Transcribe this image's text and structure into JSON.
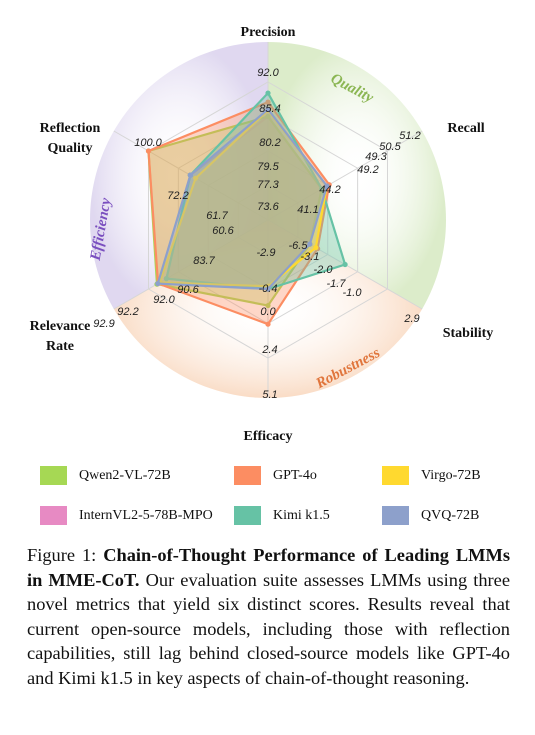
{
  "chart_data": {
    "type": "radar",
    "axes": [
      "Precision",
      "Recall",
      "Stability",
      "Efficacy",
      "Relevance Rate",
      "Reflection Quality"
    ],
    "range": [
      0,
      100
    ],
    "group_labels": [
      "Quality",
      "Robustness",
      "Efficiency"
    ],
    "series": [
      {
        "name": "Qwen2-VL-72B",
        "color": "#a6d854",
        "values": [
          null,
          null,
          null,
          2.4,
          92.9,
          100.0
        ]
      },
      {
        "name": "GPT-4o",
        "color": "#fc8d62",
        "values": [
          85.4,
          51.2,
          -1.7,
          5.1,
          92.0,
          100.0
        ]
      },
      {
        "name": "Virgo-72B",
        "color": "#ffd92f",
        "values": [
          79.5,
          49.2,
          -2.0,
          -0.4,
          90.6,
          60.6
        ]
      },
      {
        "name": "InternVL2-5-78B-MPO",
        "color": "#e78ac3",
        "values": [
          null,
          null,
          null,
          null,
          null,
          null
        ]
      },
      {
        "name": "Kimi k1.5",
        "color": "#66c2a5",
        "values": [
          92.0,
          null,
          2.9,
          null,
          null,
          null
        ]
      },
      {
        "name": "QVQ-72B",
        "color": "#8da0cb",
        "values": [
          80.2,
          49.3,
          null,
          null,
          92.2,
          null
        ]
      }
    ],
    "value_labels": [
      {
        "axis": 0,
        "text": "92.0"
      },
      {
        "axis": 0,
        "text": "85.4"
      },
      {
        "axis": 0,
        "text": "80.2"
      },
      {
        "axis": 0,
        "text": "79.5"
      },
      {
        "axis": 0,
        "text": "77.3"
      },
      {
        "axis": 0,
        "text": "73.6"
      },
      {
        "axis": 1,
        "text": "51.2"
      },
      {
        "axis": 1,
        "text": "50.5"
      },
      {
        "axis": 1,
        "text": "49.3"
      },
      {
        "axis": 1,
        "text": "49.2"
      },
      {
        "axis": 1,
        "text": "44.2"
      },
      {
        "axis": 1,
        "text": "41.1"
      },
      {
        "axis": 2,
        "text": "2.9"
      },
      {
        "axis": 2,
        "text": "-1.0"
      },
      {
        "axis": 2,
        "text": "-1.7"
      },
      {
        "axis": 2,
        "text": "-2.0"
      },
      {
        "axis": 2,
        "text": "-3.1"
      },
      {
        "axis": 2,
        "text": "-6.5"
      },
      {
        "axis": 3,
        "text": "5.1"
      },
      {
        "axis": 3,
        "text": "2.4"
      },
      {
        "axis": 3,
        "text": "0.0"
      },
      {
        "axis": 3,
        "text": "-0.4"
      },
      {
        "axis": 3,
        "text": "-2.9"
      },
      {
        "axis": 4,
        "text": "92.9"
      },
      {
        "axis": 4,
        "text": "92.2"
      },
      {
        "axis": 4,
        "text": "92.0"
      },
      {
        "axis": 4,
        "text": "90.6"
      },
      {
        "axis": 4,
        "text": "83.7"
      },
      {
        "axis": 5,
        "text": "100.0"
      },
      {
        "axis": 5,
        "text": "72.2"
      },
      {
        "axis": 5,
        "text": "61.7"
      },
      {
        "axis": 5,
        "text": "60.6"
      }
    ]
  },
  "legend": [
    {
      "name": "Qwen2-VL-72B",
      "color": "#a6d854"
    },
    {
      "name": "GPT-4o",
      "color": "#fc8d62"
    },
    {
      "name": "Virgo-72B",
      "color": "#ffd92f"
    },
    {
      "name": "InternVL2-5-78B-MPO",
      "color": "#e78ac3"
    },
    {
      "name": "Kimi k1.5",
      "color": "#66c2a5"
    },
    {
      "name": "QVQ-72B",
      "color": "#8da0cb"
    }
  ],
  "caption": {
    "prefix": "Figure 1: ",
    "bold": "Chain-of-Thought Performance of Leading LMMs in MME-CoT.",
    "rest": " Our evaluation suite assesses LMMs using three novel metrics that yield six distinct scores. Results reveal that current open-source models, including those with reflection capabilities, still lag behind closed-source models like GPT-4o and Kimi k1.5 in key aspects of chain-of-thought reasoning."
  }
}
